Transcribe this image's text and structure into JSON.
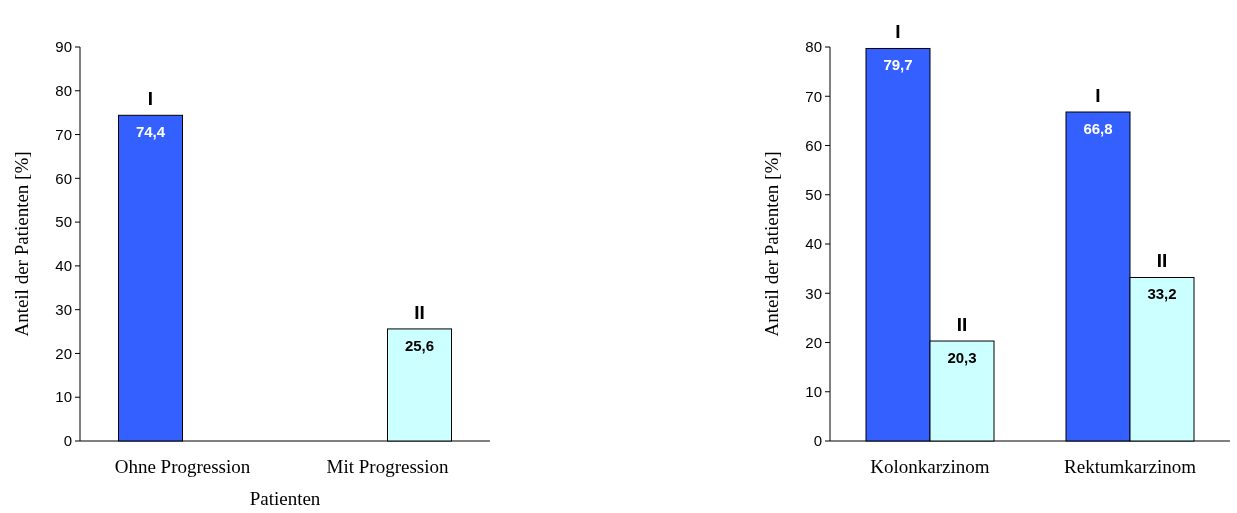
{
  "chart_data": [
    {
      "type": "bar",
      "xlabel": "Patienten",
      "ylabel": "Anteil der Patienten [%]",
      "categories": [
        "Ohne Progression",
        "Mit Progression"
      ],
      "series": [
        {
          "name": "I",
          "color": "#3360ff",
          "values": [
            74.4,
            null
          ],
          "value_labels": [
            "74,4",
            null
          ]
        },
        {
          "name": "II",
          "color": "#ccffff",
          "values": [
            null,
            25.6
          ],
          "value_labels": [
            null,
            "25,6"
          ]
        }
      ],
      "ylim": [
        0,
        90
      ],
      "yticks": [
        0,
        10,
        20,
        30,
        40,
        50,
        60,
        70,
        80,
        90
      ],
      "grid": false,
      "legend": false
    },
    {
      "type": "bar",
      "ylabel": "Anteil der Patienten [%]",
      "categories": [
        "Kolonkarzinom",
        "Rektumkarzinom"
      ],
      "series": [
        {
          "name": "I",
          "color": "#3360ff",
          "values": [
            79.7,
            66.8
          ],
          "value_labels": [
            "79,7",
            "66,8"
          ]
        },
        {
          "name": "II",
          "color": "#ccffff",
          "values": [
            20.3,
            33.2
          ],
          "value_labels": [
            "20,3",
            "33,2"
          ]
        }
      ],
      "ylim": [
        0,
        80
      ],
      "yticks": [
        0,
        10,
        20,
        30,
        40,
        50,
        60,
        70,
        80
      ],
      "grid": false,
      "legend": false
    }
  ]
}
